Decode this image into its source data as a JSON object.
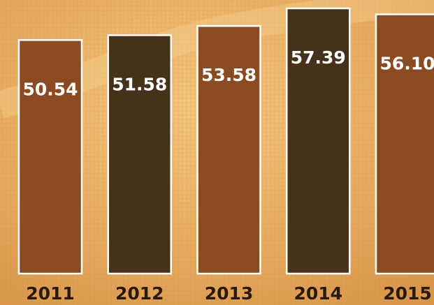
{
  "chart_data": {
    "type": "bar",
    "categories": [
      "2011",
      "2012",
      "2013",
      "2014",
      "2015"
    ],
    "values": [
      50.54,
      51.58,
      53.58,
      57.39,
      56.1
    ],
    "value_labels": [
      "50.54",
      "51.58",
      "53.58",
      "57.39",
      "56.10"
    ],
    "colors": [
      "#8a4a22",
      "#46321b",
      "#8a4a22",
      "#46321b",
      "#8a4a22"
    ]
  }
}
